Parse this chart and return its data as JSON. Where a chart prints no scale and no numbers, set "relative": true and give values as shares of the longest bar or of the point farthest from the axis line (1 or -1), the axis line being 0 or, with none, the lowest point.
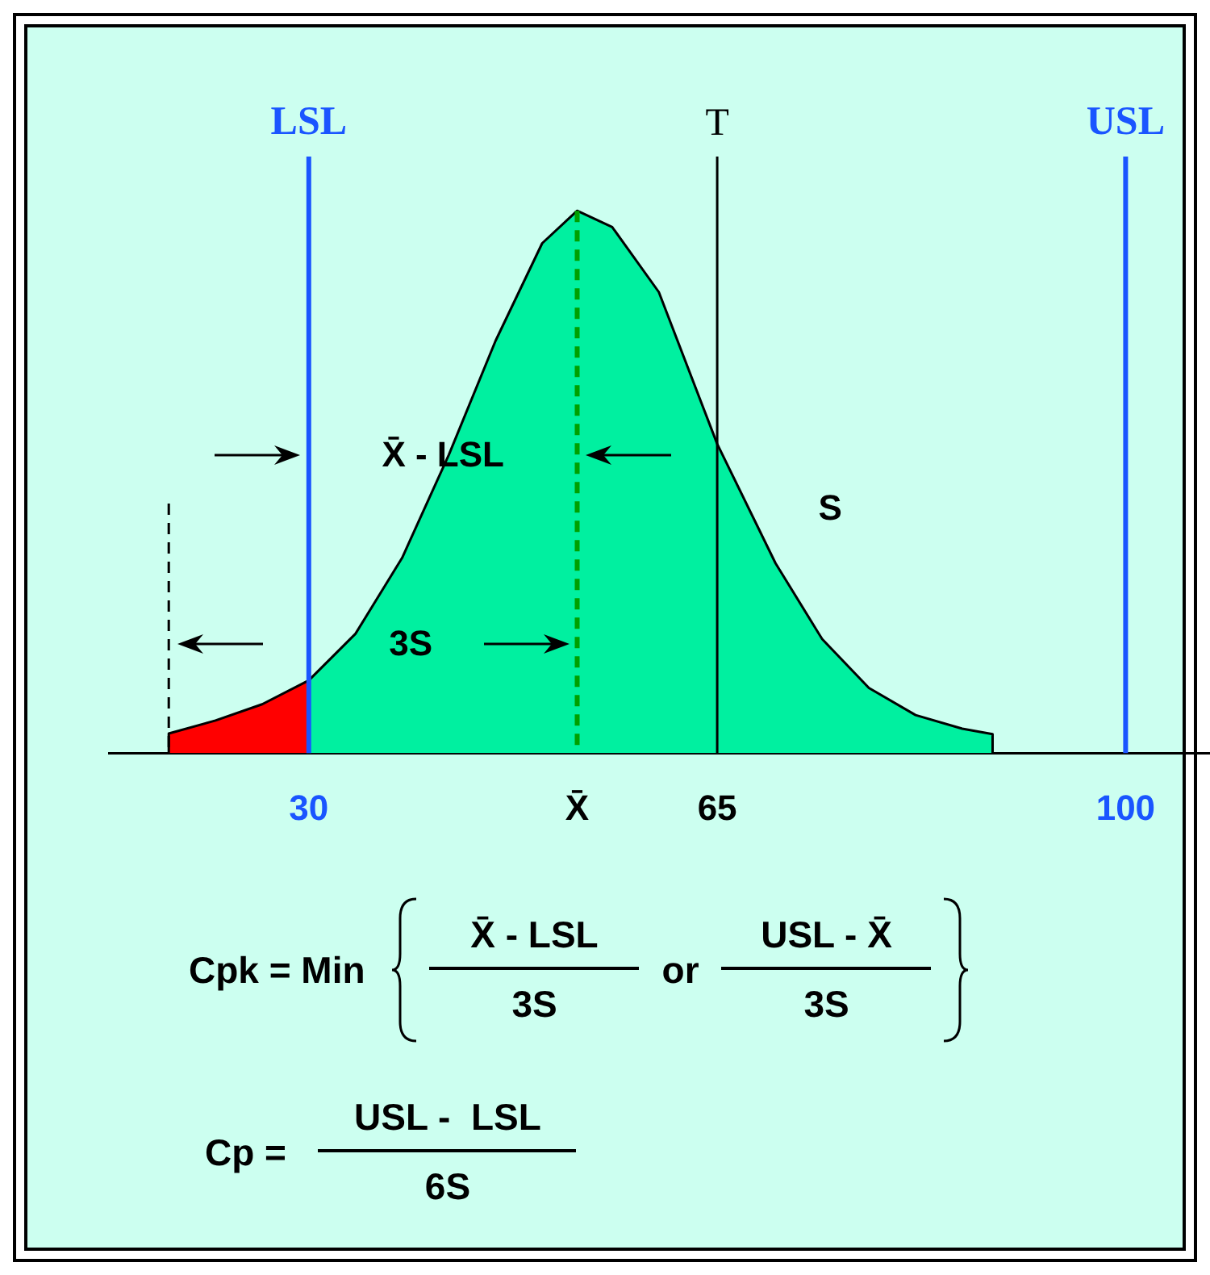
{
  "chart_data": {
    "type": "area",
    "relative": true,
    "xlim": [
      12.8,
      108.2
    ],
    "xticks": [
      30,
      {
        "value": 53,
        "label": "X̄"
      },
      65,
      100
    ],
    "series": [
      {
        "color": "#ff0000",
        "x": [
          18,
          18,
          22,
          26,
          30,
          30
        ],
        "values": [
          0,
          0.036,
          0.06,
          0.09,
          0.134,
          0
        ]
      },
      {
        "color": "#00f0a0",
        "x": [
          30,
          30,
          34,
          38,
          42,
          46,
          50,
          53,
          56,
          60,
          65,
          70,
          74,
          78,
          82,
          86,
          88.6,
          88.6
        ],
        "values": [
          0,
          0.134,
          0.22,
          0.36,
          0.55,
          0.76,
          0.94,
          1.0,
          0.97,
          0.85,
          0.57,
          0.35,
          0.21,
          0.12,
          0.07,
          0.045,
          0.035,
          0
        ]
      }
    ],
    "ref_lines": [
      {
        "axis": "x",
        "value": 30,
        "label": "LSL",
        "color": "#1a55ff"
      },
      {
        "axis": "x",
        "value": 100,
        "label": "USL",
        "color": "#1a55ff"
      },
      {
        "axis": "x",
        "value": 65,
        "label": "T",
        "color": "#000000"
      },
      {
        "axis": "x",
        "value": 53,
        "color": "#00a000",
        "line_style": "dashed"
      },
      {
        "axis": "x",
        "value": 18,
        "color": "#000000",
        "line_style": "dashed"
      }
    ],
    "annotations": [
      "X̄ - LSL",
      "3S",
      "S",
      "Cpk = Min",
      "X̄ - LSL",
      "3S",
      "or",
      "USL - X̄",
      "3S",
      "Cp =",
      "USL -  LSL",
      "6S"
    ]
  }
}
